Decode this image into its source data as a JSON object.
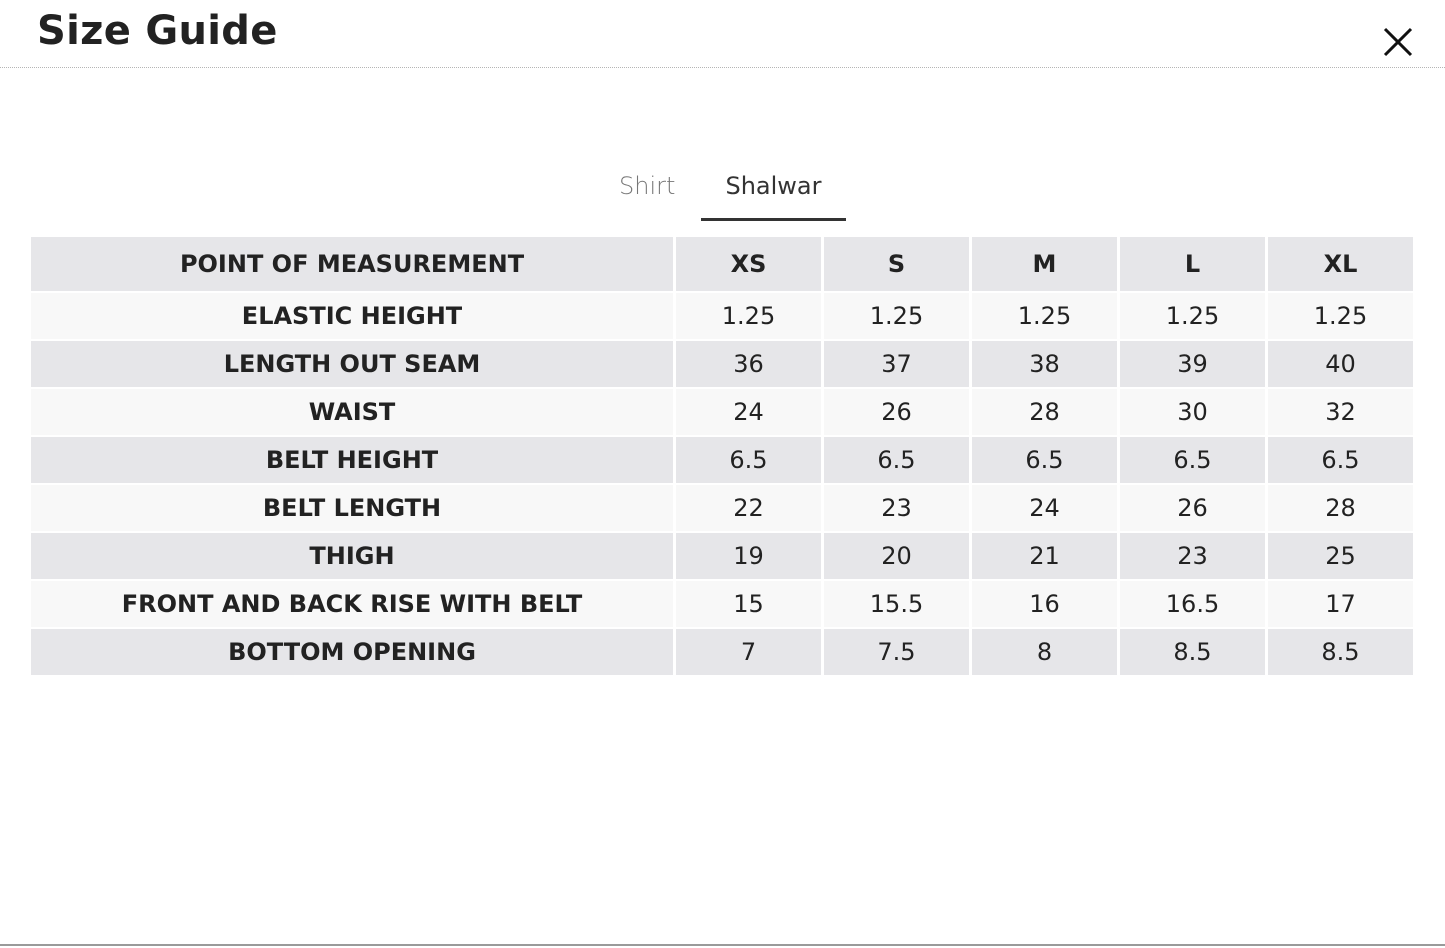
{
  "header": {
    "title": "Size Guide"
  },
  "tabs": [
    "Shirt",
    "Shalwar"
  ],
  "table": {
    "columns": [
      "POINT OF MEASUREMENT",
      "XS",
      "S",
      "M",
      "L",
      "XL"
    ],
    "rows": [
      [
        "ELASTIC HEIGHT",
        "1.25",
        "1.25",
        "1.25",
        "1.25",
        "1.25"
      ],
      [
        "LENGTH OUT SEAM",
        "36",
        "37",
        "38",
        "39",
        "40"
      ],
      [
        "WAIST",
        "24",
        "26",
        "28",
        "30",
        "32"
      ],
      [
        "BELT HEIGHT",
        "6.5",
        "6.5",
        "6.5",
        "6.5",
        "6.5"
      ],
      [
        "BELT LENGTH",
        "22",
        "23",
        "24",
        "26",
        "28"
      ],
      [
        "THIGH",
        "19",
        "20",
        "21",
        "23",
        "25"
      ],
      [
        "FRONT AND BACK RISE WITH BELT",
        "15",
        "15.5",
        "16",
        "16.5",
        "17"
      ],
      [
        "BOTTOM OPENING",
        "7",
        "7.5",
        "8",
        "8.5",
        "8.5"
      ]
    ]
  }
}
